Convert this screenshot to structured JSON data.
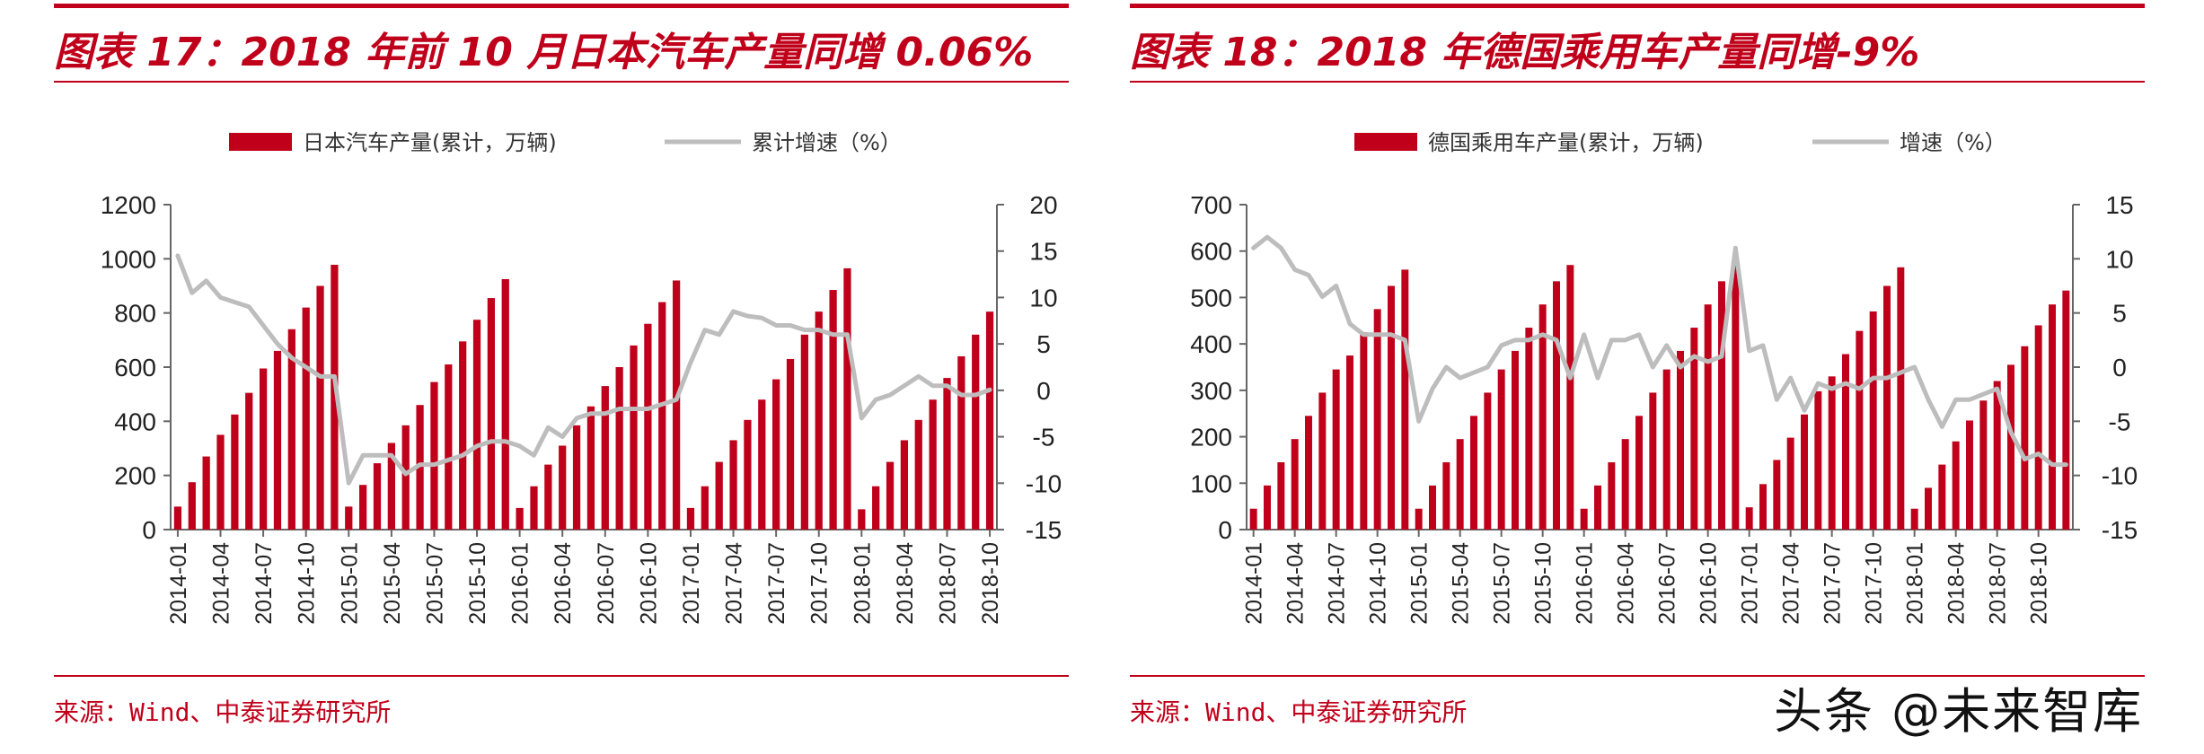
{
  "figures": [
    {
      "title": "图表 17：2018 年前 10 月日本汽车产量同增 0.06%",
      "source": "来源：Wind、中泰证券研究所",
      "legend_bar": "日本汽车产量(累计，万辆)",
      "legend_line": "累计增速（%）",
      "left_ticks": [
        "0",
        "200",
        "400",
        "600",
        "800",
        "1000",
        "1200"
      ],
      "right_ticks": [
        "-15",
        "-10",
        "-5",
        "0",
        "5",
        "10",
        "15",
        "20"
      ]
    },
    {
      "title": "图表 18：2018 年德国乘用车产量同增-9%",
      "source": "来源：Wind、中泰证券研究所",
      "legend_bar": "德国乘用车产量(累计，万辆)",
      "legend_line": "增速（%）",
      "left_ticks": [
        "0",
        "100",
        "200",
        "300",
        "400",
        "500",
        "600",
        "700"
      ],
      "right_ticks": [
        "-15",
        "-10",
        "-5",
        "0",
        "5",
        "10",
        "15"
      ]
    }
  ],
  "watermark": "头条 @未来智库",
  "colors": {
    "accent": "#c0001a",
    "bar": "#c0001a",
    "line": "#bdbdbd",
    "axis": "#666666"
  },
  "chart_data": [
    {
      "type": "bar+line",
      "title": "图表 17：2018 年前 10 月日本汽车产量同增 0.06%",
      "x_tick_labels": [
        "2014-01",
        "2014-04",
        "2014-07",
        "2014-10",
        "2015-01",
        "2015-04",
        "2015-07",
        "2015-10",
        "2016-01",
        "2016-04",
        "2016-07",
        "2016-10",
        "2017-01",
        "2017-04",
        "2017-07",
        "2017-10",
        "2018-01",
        "2018-04",
        "2018-07",
        "2018-10"
      ],
      "y_left": {
        "min": 0,
        "max": 1200,
        "step": 200
      },
      "y_right": {
        "min": -15,
        "max": 20,
        "step": 5
      },
      "bars": {
        "name": "日本汽车产量(累计，万辆)",
        "axis": "left",
        "values": [
          85,
          175,
          270,
          350,
          425,
          505,
          595,
          660,
          740,
          820,
          900,
          978,
          85,
          165,
          245,
          320,
          385,
          460,
          545,
          610,
          695,
          775,
          855,
          925,
          80,
          160,
          240,
          310,
          385,
          455,
          530,
          600,
          680,
          760,
          840,
          920,
          80,
          160,
          250,
          330,
          405,
          480,
          555,
          630,
          720,
          805,
          885,
          965,
          75,
          160,
          250,
          330,
          405,
          480,
          560,
          640,
          720,
          805
        ]
      },
      "line": {
        "name": "累计增速（%）",
        "axis": "right",
        "values": [
          14.5,
          10.5,
          11.8,
          10,
          9.5,
          9,
          7,
          5,
          3.5,
          2.5,
          1.5,
          1.5,
          -10,
          -7,
          -7,
          -7,
          -9,
          -8,
          -8,
          -7.5,
          -7,
          -6,
          -5.5,
          -5.5,
          -6,
          -7,
          -4,
          -5,
          -3,
          -2.5,
          -2.5,
          -2,
          -2,
          -2,
          -1.5,
          -1,
          3,
          6.5,
          6,
          8.5,
          8,
          7.8,
          7,
          7,
          6.5,
          6.5,
          6,
          6,
          -3,
          -1,
          -0.5,
          0.5,
          1.5,
          0.5,
          0.5,
          -0.5,
          -0.5,
          0.06
        ]
      }
    },
    {
      "type": "bar+line",
      "title": "图表 18：2018 年德国乘用车产量同增-9%",
      "x_tick_labels": [
        "2014-01",
        "2014-04",
        "2014-07",
        "2014-10",
        "2015-01",
        "2015-04",
        "2015-07",
        "2015-10",
        "2016-01",
        "2016-04",
        "2016-07",
        "2016-10",
        "2017-01",
        "2017-04",
        "2017-07",
        "2017-10",
        "2018-01",
        "2018-04",
        "2018-07",
        "2018-10"
      ],
      "y_left": {
        "min": 0,
        "max": 700,
        "step": 100
      },
      "y_right": {
        "min": -15,
        "max": 15,
        "step": 5
      },
      "bars": {
        "name": "德国乘用车产量(累计，万辆)",
        "axis": "left",
        "values": [
          45,
          95,
          145,
          195,
          245,
          295,
          345,
          375,
          425,
          475,
          525,
          560,
          45,
          95,
          145,
          195,
          245,
          295,
          345,
          385,
          435,
          485,
          535,
          570,
          45,
          95,
          145,
          195,
          245,
          295,
          345,
          385,
          435,
          485,
          535,
          575,
          48,
          98,
          150,
          198,
          248,
          298,
          330,
          378,
          428,
          470,
          525,
          565,
          45,
          90,
          140,
          190,
          235,
          278,
          320,
          355,
          395,
          440,
          485,
          515
        ]
      },
      "line": {
        "name": "增速（%）",
        "axis": "right",
        "values": [
          11,
          12,
          11,
          9,
          8.5,
          6.5,
          7.5,
          4,
          3,
          3,
          3,
          2.5,
          -5,
          -2,
          0,
          -1,
          -0.5,
          0,
          2,
          2.5,
          2.5,
          3,
          2.5,
          -1,
          3,
          -1,
          2.5,
          2.5,
          3,
          0,
          2,
          0,
          1,
          0.5,
          1,
          11,
          1.5,
          2,
          -3,
          -1,
          -4,
          -1.5,
          -2,
          -1.5,
          -2,
          -1,
          -1,
          -0.5,
          0,
          -3,
          -5.5,
          -3,
          -3,
          -2.5,
          -2,
          -6,
          -8.5,
          -8,
          -9,
          -9
        ]
      }
    }
  ]
}
